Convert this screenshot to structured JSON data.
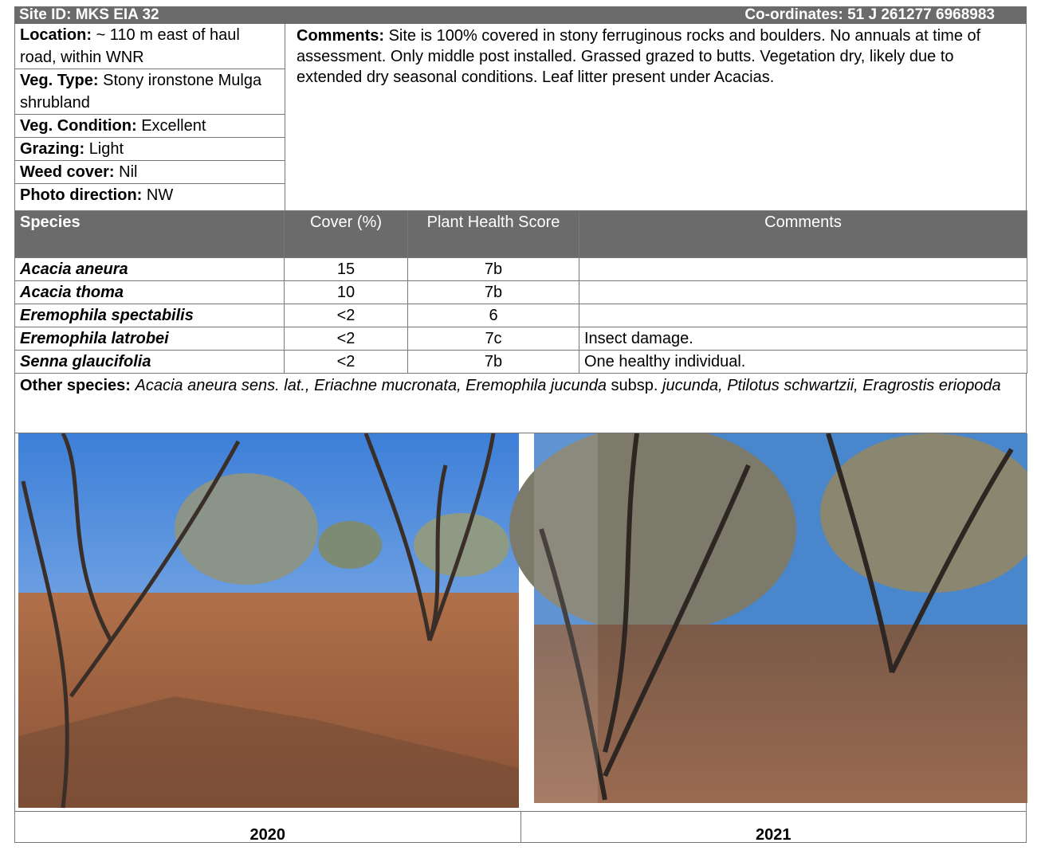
{
  "header": {
    "site_id": "Site ID: MKS EIA 32",
    "coordinates": "Co-ordinates: 51 J 261277 6968983"
  },
  "site_info": [
    {
      "label": "Location:",
      "value": "~ 110 m east of haul road, within WNR"
    },
    {
      "label": "Veg. Type:",
      "value": "Stony ironstone Mulga shrubland"
    },
    {
      "label": "Veg. Condition:",
      "value": "Excellent"
    },
    {
      "label": "Grazing:",
      "value": "Light"
    },
    {
      "label": "Weed cover:",
      "value": "Nil"
    },
    {
      "label": "Photo direction:",
      "value": "NW"
    }
  ],
  "comments": {
    "label": "Comments:",
    "text": "Site is 100% covered in stony ferruginous rocks and boulders. No annuals at time of assessment. Only middle post installed. Grassed grazed to butts. Vegetation dry, likely due to extended dry seasonal conditions. Leaf litter present under Acacias."
  },
  "species_table": {
    "headers": [
      "Species",
      "Cover (%)",
      "Plant Health Score",
      "Comments"
    ],
    "rows": [
      {
        "species": "Acacia aneura",
        "cover": 15,
        "health": "7b"
      },
      {
        "species": "Acacia thoma",
        "cover": 10,
        "health": "7b"
      },
      {
        "species": "Eremophila spectabilis",
        "cover": "<2",
        "health": 6
      },
      {
        "species": "Eremophila latrobei",
        "cover": "<2",
        "health": "7c",
        "comment": "Insect damage."
      },
      {
        "species": "Senna glaucifolia",
        "cover": "<2",
        "health": "7b",
        "comment": "One healthy individual."
      }
    ]
  },
  "other_species": {
    "label": "Other species:",
    "parts": [
      {
        "text": "Acacia aneura sens. lat., Eriachne mucronata, Eremophila jucunda",
        "italic": true
      },
      {
        "text": "subsp.",
        "italic": false
      },
      {
        "text": "jucunda, Ptilotus schwartzii, Eragrostis eriopoda",
        "italic": true
      }
    ]
  },
  "photos": [
    {
      "caption": "2020"
    },
    {
      "caption": "2021"
    }
  ]
}
